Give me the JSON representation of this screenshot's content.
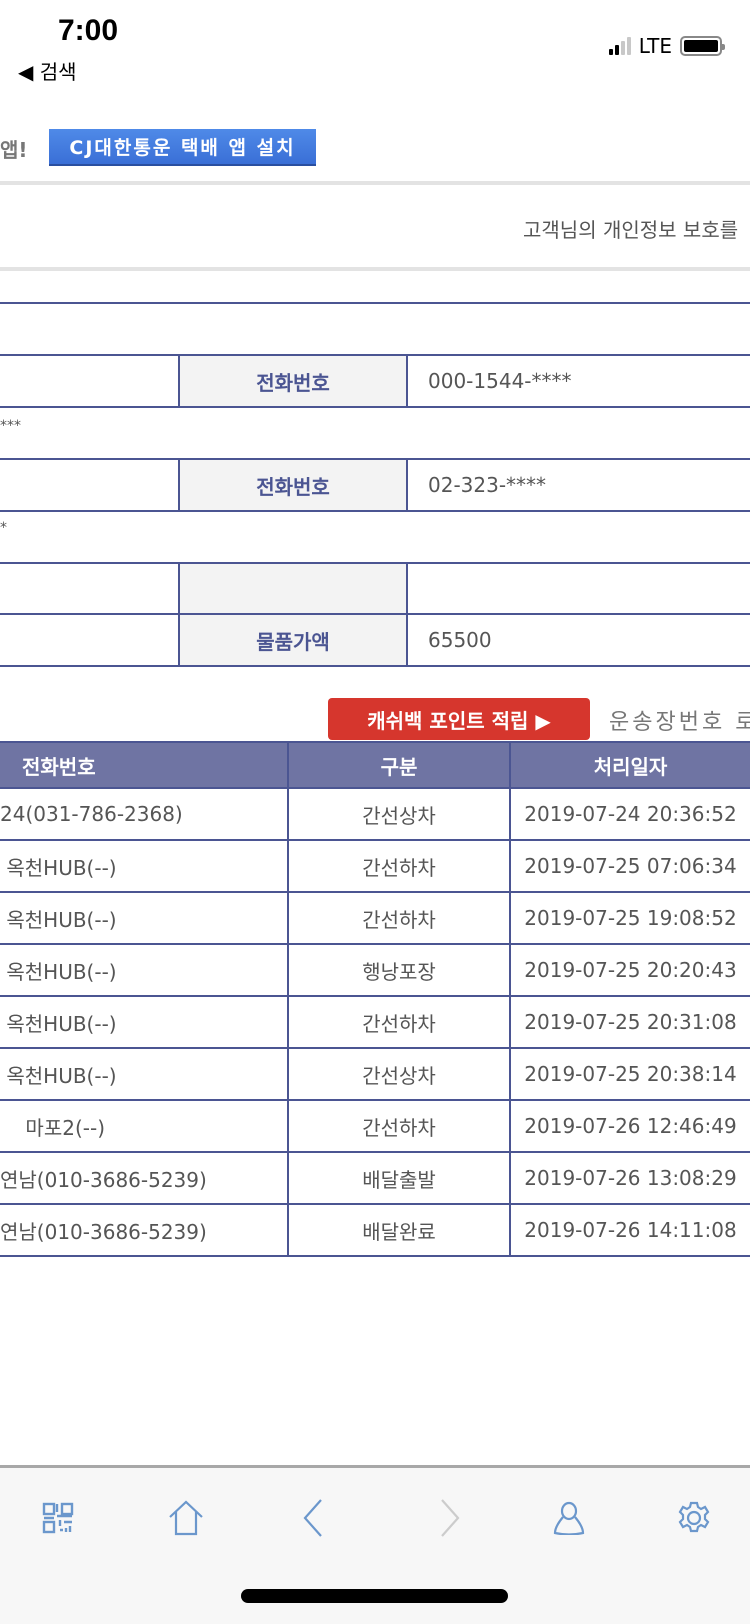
{
  "status_bar": {
    "time": "7:00",
    "back_label": "◀ 검색",
    "network": "LTE",
    "signal_bars": 2,
    "signal_total": 4
  },
  "banner": {
    "prefix_text": "앱!",
    "install_button": "CJ대한통운 택배 앱 설치"
  },
  "privacy_notice": "고객님의 개인정보 보호를",
  "info": {
    "row1": {
      "label": "전화번호",
      "value": "000-1544-****"
    },
    "row1_extra": "***",
    "row2": {
      "label": "전화번호",
      "value": "02-323-****"
    },
    "row2_extra": "*",
    "row3": {
      "label": "",
      "value": ""
    },
    "row4": {
      "label": "물품가액",
      "value": "65500"
    }
  },
  "cashback_button": "캐쉬백 포인트 적립 ▶",
  "waybill_text": "운송장번호 로",
  "tracking": {
    "headers": [
      "전화번호",
      "구분",
      "처리일자"
    ],
    "rows": [
      [
        "24(031-786-2368)",
        "간선상차",
        "2019-07-24 20:36:52"
      ],
      [
        " 옥천HUB(--)",
        "간선하차",
        "2019-07-25 07:06:34"
      ],
      [
        " 옥천HUB(--)",
        "간선하차",
        "2019-07-25 19:08:52"
      ],
      [
        " 옥천HUB(--)",
        "행낭포장",
        "2019-07-25 20:20:43"
      ],
      [
        " 옥천HUB(--)",
        "간선하차",
        "2019-07-25 20:31:08"
      ],
      [
        " 옥천HUB(--)",
        "간선상차",
        "2019-07-25 20:38:14"
      ],
      [
        "    마포2(--)",
        "간선하차",
        "2019-07-26 12:46:49"
      ],
      [
        "연남(010-3686-5239)",
        "배달출발",
        "2019-07-26 13:08:29"
      ],
      [
        "연남(010-3686-5239)",
        "배달완료",
        "2019-07-26 14:11:08"
      ]
    ]
  },
  "bottom_nav": [
    "qr-code-icon",
    "home-icon",
    "back-icon",
    "forward-icon",
    "user-icon",
    "settings-icon"
  ],
  "colors": {
    "table_border": "#4b5592",
    "table_header": "#6f74a3",
    "cashback": "#d6362d",
    "banner": "#3f7ae0",
    "icon": "#6b97cc",
    "icon_disabled": "#cccccc"
  }
}
